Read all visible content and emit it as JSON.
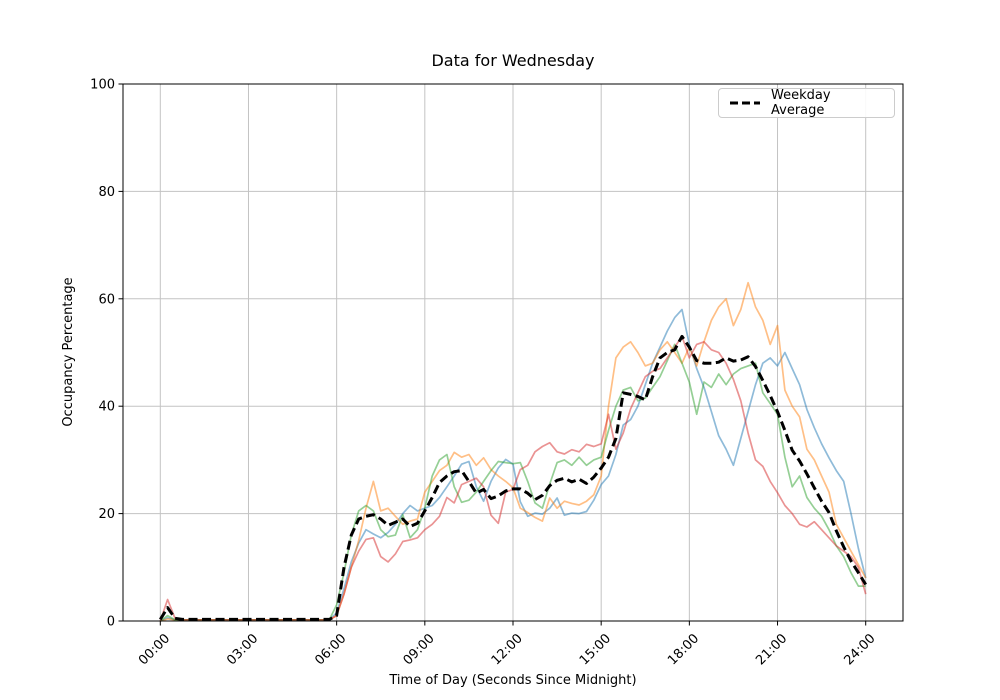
{
  "window": {
    "background": "#ffffff"
  },
  "chart_data": {
    "type": "line",
    "title": "Data for Wednesday",
    "xlabel": "Time of Day (Seconds Since Midnight)",
    "ylabel": "Occupancy Percentage",
    "grid": true,
    "ylim": [
      0,
      100
    ],
    "y_ticks": [
      0,
      20,
      40,
      60,
      80,
      100
    ],
    "x_tick_minutes": [
      0,
      180,
      360,
      540,
      720,
      900,
      1080,
      1260,
      1440
    ],
    "x_tick_labels": [
      "00:00",
      "03:00",
      "06:00",
      "09:00",
      "12:00",
      "15:00",
      "18:00",
      "21:00",
      "24:00"
    ],
    "x_start_minutes": 0,
    "x_step_minutes": 15,
    "x_end_minutes": 1440,
    "colors": {
      "axis": "#000000",
      "grid": "#c3c3c3",
      "legend_border": "#cccccc",
      "series_blue": "rgba(31,119,180,0.5)",
      "series_orange": "rgba(255,127,14,0.5)",
      "series_green": "rgba(44,160,44,0.5)",
      "series_red": "rgba(214,39,40,0.5)",
      "average": "#000000"
    },
    "legend": {
      "position": "upper right",
      "entries": [
        {
          "label": "Weekday Average",
          "style": "dashed",
          "color": "#000000"
        }
      ]
    },
    "series": [
      {
        "name": "series-blue",
        "color": "rgba(31,119,180,0.5)",
        "width": 1.7,
        "dash": "",
        "values": [
          0,
          0.6,
          0.2,
          0.2,
          0.2,
          0.2,
          0.2,
          0.2,
          0.2,
          0.2,
          0.2,
          0.2,
          0.2,
          0.2,
          0.2,
          0.2,
          0.2,
          0.2,
          0.2,
          0.2,
          0.2,
          0.2,
          0.2,
          0.2,
          1.5,
          6,
          11,
          14.5,
          17,
          16.2,
          15.5,
          16.5,
          18,
          20,
          21.5,
          20.5,
          21,
          21.5,
          23,
          25,
          27,
          29.2,
          29.7,
          25,
          22.3,
          26,
          28.5,
          30.1,
          29.2,
          22.2,
          19.5,
          20.1,
          19.9,
          21,
          22.9,
          19.7,
          20.1,
          20,
          20.4,
          22.5,
          25.4,
          27,
          31,
          36.5,
          37.5,
          40,
          44,
          48,
          51,
          54,
          56.5,
          58,
          51.5,
          47,
          43.5,
          39,
          34.5,
          32,
          29,
          34,
          39,
          44,
          48,
          49,
          47.5,
          50,
          47,
          44,
          39.4,
          36,
          33,
          30.4,
          28,
          26,
          20,
          13.5,
          8
        ]
      },
      {
        "name": "series-orange",
        "color": "rgba(255,127,14,0.5)",
        "width": 1.7,
        "dash": "",
        "values": [
          0,
          0.4,
          0.2,
          0.2,
          0.2,
          0.2,
          0.2,
          0.2,
          0.2,
          0.2,
          0.2,
          0.2,
          0.2,
          0.2,
          0.2,
          0.2,
          0.2,
          0.2,
          0.2,
          0.2,
          0.2,
          0.2,
          0.2,
          0.2,
          1,
          5,
          10,
          15,
          21,
          26,
          20.5,
          21,
          19.5,
          18,
          18.6,
          19,
          24,
          26,
          28,
          29,
          31.4,
          30.5,
          31,
          29,
          30.4,
          28.2,
          27,
          26,
          24.8,
          21,
          20.2,
          19.3,
          18.6,
          22.9,
          21,
          22.3,
          21.9,
          21.6,
          22.3,
          23.5,
          27,
          40,
          49,
          51,
          52,
          50,
          47.5,
          48,
          50.5,
          52,
          50,
          48,
          51,
          47.5,
          52,
          56,
          58.5,
          60,
          55,
          58,
          63,
          58.5,
          56,
          51.5,
          55,
          43,
          40,
          38,
          32,
          30,
          27,
          24,
          18,
          15.5,
          13,
          10.5,
          8
        ]
      },
      {
        "name": "series-green",
        "color": "rgba(44,160,44,0.5)",
        "width": 1.7,
        "dash": "",
        "values": [
          0,
          1,
          0.2,
          0.2,
          0.2,
          0.2,
          0.2,
          0.2,
          0.2,
          0.2,
          0.2,
          0.2,
          0.2,
          0.2,
          0.2,
          0.2,
          0.2,
          0.2,
          0.2,
          0.2,
          0.2,
          0.2,
          0.2,
          0.2,
          3,
          9,
          16,
          20.5,
          21.5,
          20.5,
          17,
          15.7,
          16,
          19.8,
          15.5,
          17,
          21,
          27,
          30,
          31,
          25,
          22.1,
          22.5,
          24,
          26,
          28,
          29.7,
          29.5,
          29.3,
          29.5,
          26,
          22,
          21,
          25.5,
          29.5,
          30,
          29,
          30.5,
          29,
          30,
          30.5,
          35.5,
          40,
          43,
          43.5,
          41,
          41.5,
          43.5,
          45.5,
          48.5,
          51.5,
          48,
          44.5,
          38.5,
          44.5,
          43.5,
          46,
          44,
          46,
          47,
          47.5,
          48,
          42.5,
          40.5,
          38.5,
          30.5,
          25,
          27,
          23,
          21,
          19.5,
          17,
          14,
          12,
          9,
          6.5,
          6.5
        ]
      },
      {
        "name": "series-red",
        "color": "rgba(214,39,40,0.5)",
        "width": 1.7,
        "dash": "",
        "values": [
          0,
          4,
          0.5,
          0.2,
          0.2,
          0.2,
          0.2,
          0.2,
          0.2,
          0.2,
          0.2,
          0.2,
          0.2,
          0.2,
          0.2,
          0.2,
          0.2,
          0.2,
          0.2,
          0.2,
          0.2,
          0.2,
          0.2,
          0.2,
          1,
          5,
          10,
          13,
          15.2,
          15.5,
          12,
          11,
          12.5,
          14.8,
          15.1,
          15.5,
          17,
          18,
          19.5,
          23,
          22,
          25.4,
          26,
          26.6,
          25,
          19.7,
          18.2,
          24,
          24.5,
          28.2,
          29,
          31.5,
          32.5,
          33.2,
          31.5,
          31.1,
          31.9,
          31.5,
          32.9,
          32.5,
          33,
          38.5,
          32,
          35,
          39.5,
          42.5,
          45.5,
          46.5,
          47,
          49,
          51,
          53,
          49,
          51.5,
          52,
          50.5,
          50,
          48,
          45,
          41,
          35,
          30,
          28.8,
          26,
          23.9,
          21.5,
          20,
          18,
          17.5,
          18.5,
          17,
          15.5,
          14,
          13,
          12,
          10,
          5
        ]
      },
      {
        "name": "weekday-average",
        "color": "#000000",
        "width": 3,
        "dash": "9 4.5",
        "values": [
          0.3,
          2.5,
          0.5,
          0.3,
          0.3,
          0.3,
          0.3,
          0.3,
          0.3,
          0.3,
          0.3,
          0.3,
          0.3,
          0.3,
          0.3,
          0.3,
          0.3,
          0.3,
          0.3,
          0.3,
          0.3,
          0.3,
          0.3,
          0.3,
          1,
          10,
          16,
          19,
          19.5,
          19.8,
          19,
          17.8,
          18.4,
          19,
          17.6,
          18.2,
          20.5,
          23,
          25.8,
          27,
          27.8,
          28,
          26,
          23.8,
          24.5,
          22.8,
          23.3,
          24.2,
          24.6,
          24.6,
          23.8,
          22.6,
          23.4,
          25.2,
          26.2,
          26.6,
          25.9,
          26.4,
          25.6,
          26.8,
          28.5,
          30.5,
          34,
          42.5,
          42.2,
          41.8,
          41.2,
          45.5,
          49,
          50,
          50.5,
          53,
          51,
          48.5,
          48,
          48,
          48.2,
          49,
          48.4,
          48.6,
          49.2,
          47.4,
          44.8,
          42,
          39,
          35.5,
          31.8,
          29.8,
          27.4,
          24.8,
          22.3,
          20.2,
          16.8,
          13.8,
          11.2,
          9,
          6.8
        ]
      }
    ]
  }
}
